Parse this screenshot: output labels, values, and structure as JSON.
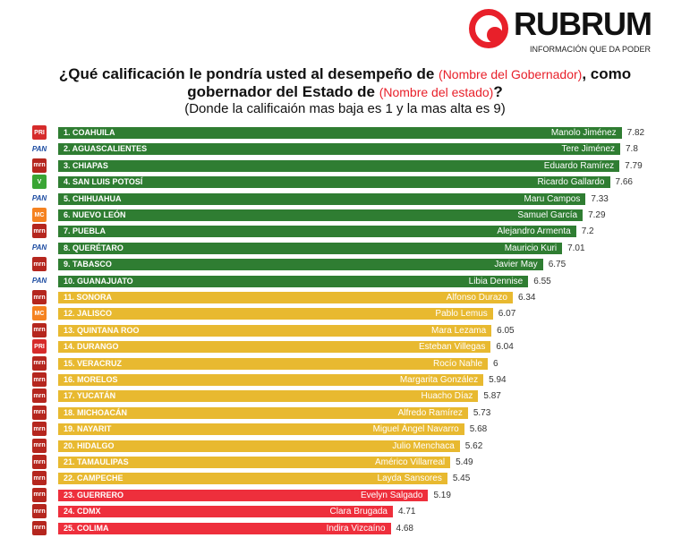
{
  "brand": {
    "name": "RUBRUM",
    "tagline": "INFORMACIÓN QUE DA PODER"
  },
  "title": {
    "line1_a": "¿Qué calificación le pondría usted al desempeño de ",
    "line1_hl": "(Nombre del Gobernador)",
    "line1_b": ", como",
    "line2_a": "gobernador del Estado de ",
    "line2_hl": "(Nombre del estado)",
    "line2_b": "?",
    "subtitle": "(Donde la calificaión mas baja es 1 y la mas alta es 9)"
  },
  "colors": {
    "high": "#2f7d32",
    "mid": "#e8b930",
    "low": "#ee2f3c",
    "pri": "#d62b2b",
    "pan": "#1a4aa0",
    "morena": "#b5261e",
    "verde": "#3aa535",
    "mc": "#f58220"
  },
  "chart_data": {
    "type": "bar",
    "orientation": "horizontal",
    "title": "¿Qué calificación le pondría usted al desempeño de (Nombre del Gobernador), como gobernador del Estado de (Nombre del estado)?",
    "xlabel": "",
    "ylabel": "",
    "xlim": [
      1,
      9
    ],
    "bars": [
      {
        "label": "1. COAHUILA",
        "governor": "Manolo Jiménez",
        "value": 7.82,
        "party": "PRI",
        "tier": "high"
      },
      {
        "label": "2. AGUASCALIENTES",
        "governor": "Tere Jiménez",
        "value": 7.8,
        "party": "PAN",
        "tier": "high"
      },
      {
        "label": "3. CHIAPAS",
        "governor": "Eduardo Ramírez",
        "value": 7.79,
        "party": "morena",
        "tier": "high"
      },
      {
        "label": "4. SAN LUIS POTOSÍ",
        "governor": "Ricardo Gallardo",
        "value": 7.66,
        "party": "VERDE",
        "tier": "high"
      },
      {
        "label": "5. CHIHUAHUA",
        "governor": "Maru Campos",
        "value": 7.33,
        "party": "PAN",
        "tier": "high"
      },
      {
        "label": "6. NUEVO LEÓN",
        "governor": "Samuel García",
        "value": 7.29,
        "party": "MC",
        "tier": "high"
      },
      {
        "label": "7. PUEBLA",
        "governor": "Alejandro Armenta",
        "value": 7.2,
        "party": "morena",
        "tier": "high"
      },
      {
        "label": "8. QUERÉTARO",
        "governor": "Mauricio Kuri",
        "value": 7.01,
        "party": "PAN",
        "tier": "high"
      },
      {
        "label": "9. TABASCO",
        "governor": "Javier May",
        "value": 6.75,
        "party": "morena",
        "tier": "high"
      },
      {
        "label": "10. GUANAJUATO",
        "governor": "Libia Dennise",
        "value": 6.55,
        "party": "PAN",
        "tier": "high"
      },
      {
        "label": "11. SONORA",
        "governor": "Alfonso Durazo",
        "value": 6.34,
        "party": "morena",
        "tier": "mid"
      },
      {
        "label": "12. JALISCO",
        "governor": "Pablo Lemus",
        "value": 6.07,
        "party": "MC",
        "tier": "mid"
      },
      {
        "label": "13. QUINTANA ROO",
        "governor": "Mara Lezama",
        "value": 6.05,
        "party": "morena",
        "tier": "mid"
      },
      {
        "label": "14. DURANGO",
        "governor": "Esteban Villegas",
        "value": 6.04,
        "party": "PRI",
        "tier": "mid"
      },
      {
        "label": "15. VERACRUZ",
        "governor": "Rocío Nahle",
        "value": 6,
        "party": "morena",
        "tier": "mid"
      },
      {
        "label": "16. MORELOS",
        "governor": "Margarita González",
        "value": 5.94,
        "party": "morena",
        "tier": "mid"
      },
      {
        "label": "17. YUCATÁN",
        "governor": "Huacho Díaz",
        "value": 5.87,
        "party": "morena",
        "tier": "mid"
      },
      {
        "label": "18. MICHOACÁN",
        "governor": "Alfredo Ramírez",
        "value": 5.73,
        "party": "morena",
        "tier": "mid"
      },
      {
        "label": "19. NAYARIT",
        "governor": "Miguel Ángel Navarro",
        "value": 5.68,
        "party": "morena",
        "tier": "mid"
      },
      {
        "label": "20. HIDALGO",
        "governor": "Julio Menchaca",
        "value": 5.62,
        "party": "morena",
        "tier": "mid"
      },
      {
        "label": "21. TAMAULIPAS",
        "governor": "Américo Villarreal",
        "value": 5.49,
        "party": "morena",
        "tier": "mid"
      },
      {
        "label": "22. CAMPECHE",
        "governor": "Layda Sansores",
        "value": 5.45,
        "party": "morena",
        "tier": "mid"
      },
      {
        "label": "23. GUERRERO",
        "governor": "Evelyn Salgado",
        "value": 5.19,
        "party": "morena",
        "tier": "low"
      },
      {
        "label": "24. CDMX",
        "governor": "Clara Brugada",
        "value": 4.71,
        "party": "morena",
        "tier": "low"
      },
      {
        "label": "25. COLIMA",
        "governor": "Indira Vizcaíno",
        "value": 4.68,
        "party": "morena",
        "tier": "low"
      }
    ]
  }
}
